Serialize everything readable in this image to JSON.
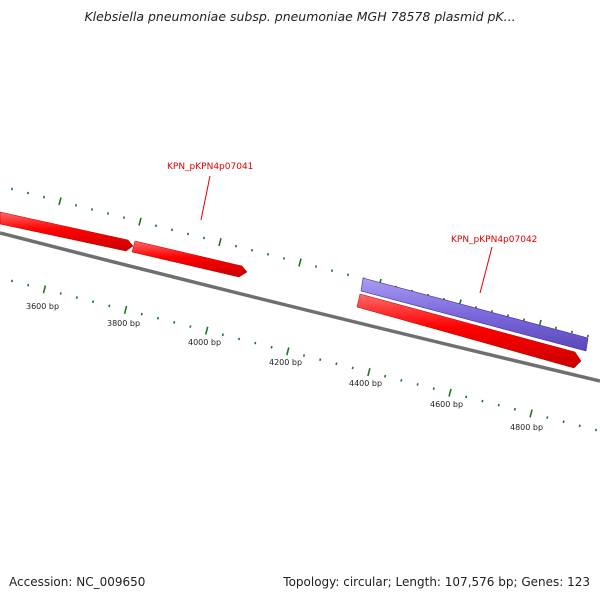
{
  "title": "Klebsiella pneumoniae subsp. pneumoniae MGH 78578 plasmid pK...",
  "footer": {
    "accession": "Accession: NC_009650",
    "summary": "Topology: circular; Length: 107,576 bp; Genes: 123"
  },
  "map": {
    "colors": {
      "backbone": "#808080",
      "tick": "#1a7a1a",
      "gene_red": "#ff0000",
      "gene_purple": "#7b68dd",
      "label_red": "#e00000"
    },
    "position_labels": [
      "3600 bp",
      "3800 bp",
      "4000 bp",
      "4200 bp",
      "4400 bp",
      "4600 bp",
      "4800 bp"
    ],
    "gene_labels": [
      {
        "text": "KPN_pKPN4p07041"
      },
      {
        "text": "KPN_pKPN4p07042"
      }
    ],
    "genes": [
      {
        "id": "gene-red-1",
        "strand": "+",
        "color": "gene_red"
      },
      {
        "id": "gene-red-2",
        "strand": "+",
        "color": "gene_red"
      },
      {
        "id": "gene-purple",
        "strand": "+",
        "color": "gene_purple"
      },
      {
        "id": "gene-red-3",
        "strand": "+",
        "color": "gene_red"
      }
    ]
  }
}
